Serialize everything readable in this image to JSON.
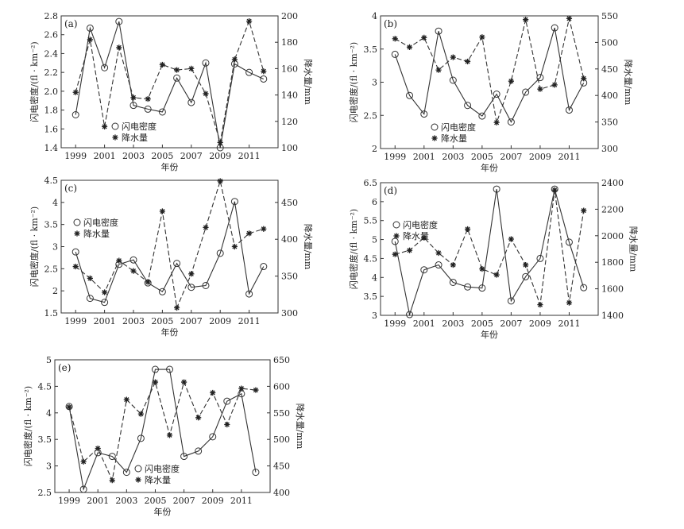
{
  "chart_data": [
    {
      "type": "line",
      "label": "(a)",
      "xlabel": "年份",
      "ylabel_left": "闪电密度/(fl · km⁻²)",
      "ylabel_right": "降水量/mm",
      "x": [
        1999,
        2000,
        2001,
        2002,
        2003,
        2004,
        2005,
        2006,
        2007,
        2008,
        2009,
        2010,
        2011,
        2012
      ],
      "xticks": [
        "1999",
        "2001",
        "2003",
        "2005",
        "2007",
        "2009",
        "2011"
      ],
      "xlim": [
        1998,
        2013
      ],
      "ylim_left": [
        1.4,
        2.8
      ],
      "yticks_left": [
        "1.4",
        "1.6",
        "1.8",
        "2.0",
        "2.2",
        "2.4",
        "2.6",
        "2.8"
      ],
      "ylim_right": [
        100,
        200
      ],
      "yticks_right": [
        "100",
        "120",
        "140",
        "160",
        "180",
        "200"
      ],
      "legend_position": "bottom-left",
      "series": [
        {
          "name": "闪电密度",
          "axis": "left",
          "style": "solid",
          "marker": "circle",
          "values": [
            1.75,
            2.67,
            2.25,
            2.74,
            1.85,
            1.81,
            1.78,
            2.14,
            1.88,
            2.3,
            1.4,
            2.29,
            2.2,
            2.13
          ]
        },
        {
          "name": "降水量",
          "axis": "right",
          "style": "dashed",
          "marker": "star",
          "values": [
            142,
            182,
            116,
            176,
            138,
            137,
            163,
            159,
            160,
            141,
            104,
            167,
            196,
            158
          ]
        }
      ]
    },
    {
      "type": "line",
      "label": "(b)",
      "xlabel": "年份",
      "ylabel_left": "闪电密度/(fl · km⁻²)",
      "ylabel_right": "降水量/mm",
      "x": [
        1999,
        2000,
        2001,
        2002,
        2003,
        2004,
        2005,
        2006,
        2007,
        2008,
        2009,
        2010,
        2011,
        2012
      ],
      "xticks": [
        "1999",
        "2001",
        "2003",
        "2005",
        "2007",
        "2009",
        "2011"
      ],
      "xlim": [
        1998,
        2013
      ],
      "ylim_left": [
        2,
        4
      ],
      "yticks_left": [
        "2",
        "2.5",
        "3",
        "3.5",
        "4"
      ],
      "ylim_right": [
        300,
        550
      ],
      "yticks_right": [
        "300",
        "350",
        "400",
        "450",
        "500",
        "550"
      ],
      "legend_position": "bottom-left",
      "series": [
        {
          "name": "闪电密度",
          "axis": "left",
          "style": "solid",
          "marker": "circle",
          "values": [
            3.42,
            2.8,
            2.52,
            3.77,
            3.03,
            2.65,
            2.49,
            2.82,
            2.4,
            2.85,
            3.07,
            3.82,
            2.58,
            2.99
          ]
        },
        {
          "name": "降水量",
          "axis": "right",
          "style": "dashed",
          "marker": "star",
          "values": [
            507,
            491,
            509,
            448,
            472,
            464,
            510,
            349,
            427,
            543,
            412,
            420,
            545,
            432
          ]
        }
      ]
    },
    {
      "type": "line",
      "label": "(c)",
      "xlabel": "年份",
      "ylabel_left": "闪电密度/(fl · km⁻²)",
      "ylabel_right": "降水量/mm",
      "x": [
        1999,
        2000,
        2001,
        2002,
        2003,
        2004,
        2005,
        2006,
        2007,
        2008,
        2009,
        2010,
        2011,
        2012
      ],
      "xticks": [
        "1999",
        "2001",
        "2003",
        "2005",
        "2007",
        "2009",
        "2011"
      ],
      "xlim": [
        1998,
        2013
      ],
      "ylim_left": [
        1.5,
        4.5
      ],
      "yticks_left": [
        "1.5",
        "2",
        "2.5",
        "3",
        "3.5",
        "4",
        "4.5"
      ],
      "ylim_right": [
        300,
        480
      ],
      "yticks_right": [
        "300",
        "350",
        "400",
        "450"
      ],
      "legend_position": "top-left",
      "series": [
        {
          "name": "闪电密度",
          "axis": "left",
          "style": "solid",
          "marker": "circle",
          "values": [
            2.88,
            1.83,
            1.74,
            2.6,
            2.7,
            2.18,
            1.98,
            2.62,
            2.08,
            2.12,
            2.85,
            4.02,
            1.93,
            2.55
          ]
        },
        {
          "name": "降水量",
          "axis": "right",
          "style": "dashed",
          "marker": "star",
          "values": [
            363,
            347,
            328,
            371,
            357,
            342,
            438,
            307,
            353,
            416,
            479,
            390,
            408,
            414
          ]
        }
      ]
    },
    {
      "type": "line",
      "label": "(d)",
      "xlabel": "年份",
      "ylabel_left": "闪电密度/(fl · km⁻²)",
      "ylabel_right": "降水量/mm",
      "x": [
        1999,
        2000,
        2001,
        2002,
        2003,
        2004,
        2005,
        2006,
        2007,
        2008,
        2009,
        2010,
        2011,
        2012
      ],
      "xticks": [
        "1999",
        "2001",
        "2003",
        "2005",
        "2007",
        "2009",
        "2011"
      ],
      "xlim": [
        1998,
        2013
      ],
      "ylim_left": [
        3,
        6.5
      ],
      "yticks_left": [
        "3",
        "3.5",
        "4",
        "4.5",
        "5",
        "5.5",
        "6",
        "6.5"
      ],
      "ylim_right": [
        1400,
        2400
      ],
      "yticks_right": [
        "1400",
        "1600",
        "1800",
        "2000",
        "2200",
        "2400"
      ],
      "legend_position": "top-left",
      "series": [
        {
          "name": "闪电密度",
          "axis": "left",
          "style": "solid",
          "marker": "circle",
          "values": [
            4.95,
            3.02,
            4.2,
            4.33,
            3.87,
            3.75,
            3.72,
            6.33,
            3.38,
            4.02,
            4.5,
            6.33,
            4.93,
            3.73
          ]
        },
        {
          "name": "降水量",
          "axis": "right",
          "style": "dashed",
          "marker": "star",
          "values": [
            1860,
            1890,
            1985,
            1870,
            1780,
            2050,
            1750,
            1705,
            1975,
            1780,
            1480,
            2345,
            1495,
            2190
          ]
        }
      ]
    },
    {
      "type": "line",
      "label": "(e)",
      "xlabel": "年份",
      "ylabel_left": "闪电密度/(fl · km⁻²)",
      "ylabel_right": "降水量/mm",
      "x": [
        1999,
        2000,
        2001,
        2002,
        2003,
        2004,
        2005,
        2006,
        2007,
        2008,
        2009,
        2010,
        2011,
        2012
      ],
      "xticks": [
        "1999",
        "2001",
        "2003",
        "2005",
        "2007",
        "2009",
        "2011"
      ],
      "xlim": [
        1998,
        2013
      ],
      "ylim_left": [
        2.5,
        5
      ],
      "yticks_left": [
        "2.5",
        "3",
        "3.5",
        "4",
        "4.5",
        "5"
      ],
      "ylim_right": [
        400,
        650
      ],
      "yticks_right": [
        "400",
        "450",
        "500",
        "550",
        "600",
        "650"
      ],
      "legend_position": "bottom-center",
      "series": [
        {
          "name": "闪电密度",
          "axis": "left",
          "style": "solid",
          "marker": "circle",
          "values": [
            4.12,
            2.56,
            3.25,
            3.18,
            2.88,
            3.52,
            4.82,
            4.82,
            3.18,
            3.28,
            3.55,
            4.22,
            4.36,
            2.88
          ]
        },
        {
          "name": "降水量",
          "axis": "right",
          "style": "dashed",
          "marker": "star",
          "values": [
            561,
            458,
            483,
            423,
            575,
            548,
            608,
            508,
            608,
            541,
            588,
            528,
            596,
            593
          ]
        }
      ]
    }
  ]
}
